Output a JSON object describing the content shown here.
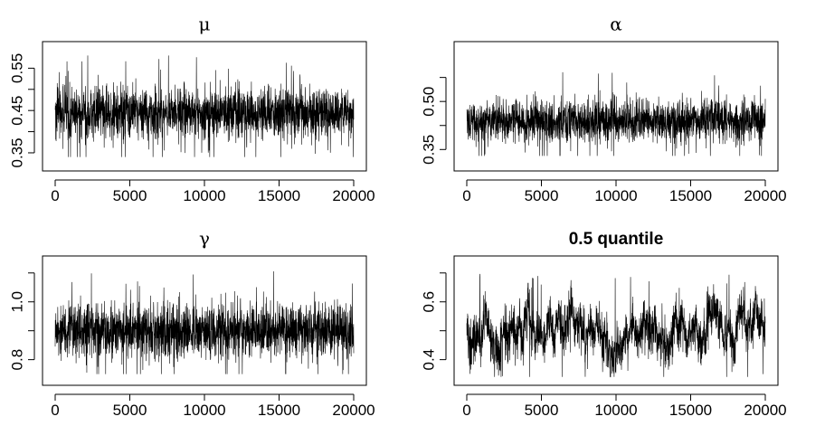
{
  "chart_data": [
    {
      "type": "line",
      "title": "μ",
      "title_style": "greek",
      "x_range": [
        0,
        20000
      ],
      "x_ticks": [
        0,
        5000,
        10000,
        15000,
        20000
      ],
      "y_range": [
        0.32,
        0.6
      ],
      "y_ticks": [
        0.35,
        0.4,
        0.45,
        0.5,
        0.55
      ],
      "y_tick_labels": [
        "0.35",
        "",
        "0.45",
        "",
        "0.55"
      ],
      "series": [
        {
          "values_summary": {
            "center": 0.445,
            "band_low": 0.39,
            "band_high": 0.51,
            "min": 0.34,
            "max": 0.58
          }
        }
      ]
    },
    {
      "type": "line",
      "title": "α",
      "title_style": "greek",
      "x_range": [
        0,
        20000
      ],
      "x_ticks": [
        0,
        5000,
        10000,
        15000,
        20000
      ],
      "y_range": [
        0.3,
        0.67
      ],
      "y_ticks": [
        0.35,
        0.425,
        0.5,
        0.575
      ],
      "y_tick_labels": [
        "0.35",
        "",
        "0.50",
        ""
      ],
      "series": [
        {
          "values_summary": {
            "center": 0.44,
            "band_low": 0.38,
            "band_high": 0.51,
            "min": 0.33,
            "max": 0.63
          }
        }
      ]
    },
    {
      "type": "line",
      "title": "γ",
      "title_style": "greek",
      "x_range": [
        0,
        20000
      ],
      "x_ticks": [
        0,
        5000,
        10000,
        15000,
        20000
      ],
      "y_range": [
        0.73,
        1.14
      ],
      "y_ticks": [
        0.8,
        0.9,
        1.0,
        1.1
      ],
      "y_tick_labels": [
        "0.8",
        "",
        "1.0",
        ""
      ],
      "series": [
        {
          "values_summary": {
            "center": 0.9,
            "band_low": 0.81,
            "band_high": 1.0,
            "min": 0.75,
            "max": 1.11
          }
        }
      ]
    },
    {
      "type": "line",
      "title": "0.5 quantile",
      "title_style": "bold",
      "x_range": [
        0,
        20000
      ],
      "x_ticks": [
        0,
        5000,
        10000,
        15000,
        20000
      ],
      "y_range": [
        0.33,
        0.74
      ],
      "y_ticks": [
        0.4,
        0.5,
        0.6,
        0.7
      ],
      "y_tick_labels": [
        "0.4",
        "",
        "0.6",
        ""
      ],
      "series": [
        {
          "values_summary": {
            "center": 0.5,
            "band_low": 0.43,
            "band_high": 0.58,
            "min": 0.34,
            "max": 0.7
          }
        }
      ]
    }
  ]
}
